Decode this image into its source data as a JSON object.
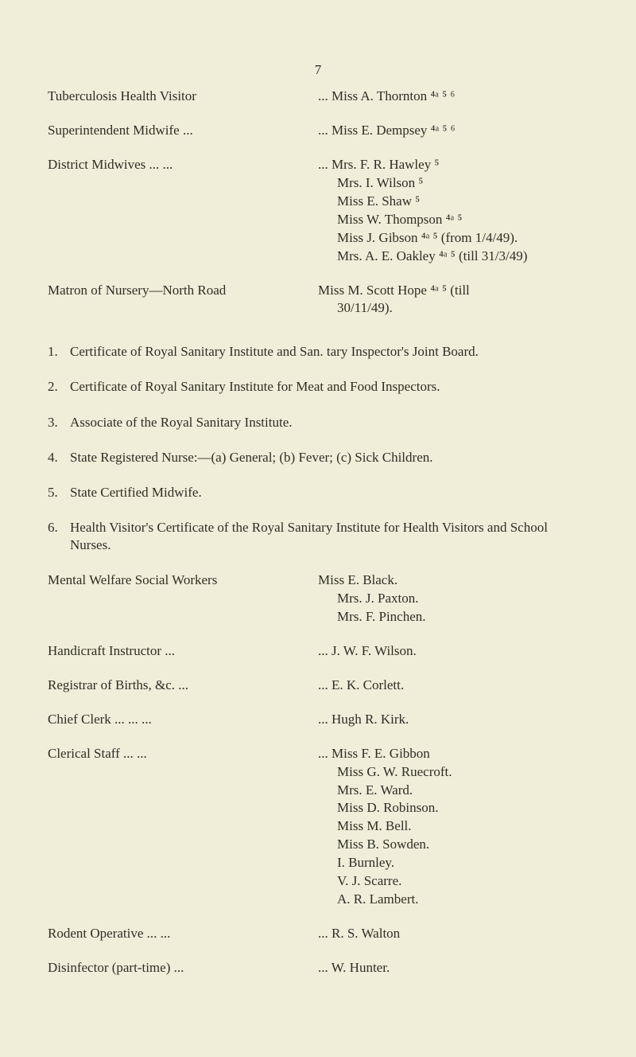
{
  "page_number": "7",
  "rows": [
    {
      "left": "Tuberculosis Health Visitor",
      "right_lines": [
        "... Miss A. Thornton ⁴ᵃ ⁵ ⁶"
      ]
    },
    {
      "left": "Superintendent Midwife   ...",
      "right_lines": [
        "... Miss E. Dempsey ⁴ᵃ ⁵ ⁶"
      ]
    },
    {
      "left": "District Midwives   ...   ...",
      "right_lines": [
        "... Mrs. F. R. Hawley ⁵",
        "Mrs. I. Wilson ⁵",
        "Miss E. Shaw ⁵",
        "Miss W. Thompson ⁴ᵃ ⁵",
        "Miss J. Gibson ⁴ᵃ ⁵ (from 1/4/49).",
        "Mrs. A. E. Oakley ⁴ᵃ ⁵ (till 31/3/49)"
      ]
    },
    {
      "left": "Matron of Nursery—North Road",
      "right_lines": [
        "Miss M. Scott Hope ⁴ᵃ ⁵ (till",
        "  30/11/49)."
      ]
    }
  ],
  "numbered": [
    "Certificate of Royal Sanitary Institute and San. tary Inspector's Joint Board.",
    "Certificate of Royal Sanitary Institute for Meat and Food Inspectors.",
    "Associate of the Royal Sanitary Institute.",
    "State Registered Nurse:—(a) General; (b) Fever; (c) Sick Children.",
    "State Certified Midwife.",
    "Health Visitor's Certificate of the Royal Sanitary Institute for Health Visitors and School Nurses."
  ],
  "lower_rows": [
    {
      "left": "Mental Welfare Social Workers",
      "right_lines": [
        "Miss E. Black.",
        "Mrs. J. Paxton.",
        "Mrs. F. Pinchen."
      ]
    },
    {
      "left": "Handicraft Instructor        ...",
      "right_lines": [
        "... J. W. F. Wilson."
      ]
    },
    {
      "left": "Registrar of Births, &c.   ...",
      "right_lines": [
        "... E. K. Corlett."
      ]
    },
    {
      "left": "Chief Clerk   ...   ...   ...",
      "right_lines": [
        "... Hugh R. Kirk."
      ]
    },
    {
      "left": "Clerical Staff        ...   ...",
      "right_lines": [
        "... Miss F. E. Gibbon",
        "Miss G. W. Ruecroft.",
        "Mrs. E. Ward.",
        "Miss D. Robinson.",
        "Miss M. Bell.",
        "Miss B. Sowden.",
        "I. Burnley.",
        "V. J. Scarre.",
        "A. R. Lambert."
      ]
    },
    {
      "left": "Rodent Operative   ...   ...",
      "right_lines": [
        "... R. S. Walton"
      ]
    },
    {
      "left": "Disinfector (part-time)    ...",
      "right_lines": [
        "... W. Hunter."
      ]
    }
  ],
  "colors": {
    "background": "#f0eed8",
    "text": "#2e2e26"
  },
  "typography": {
    "body_fontsize": 17,
    "font_family": "serif"
  }
}
